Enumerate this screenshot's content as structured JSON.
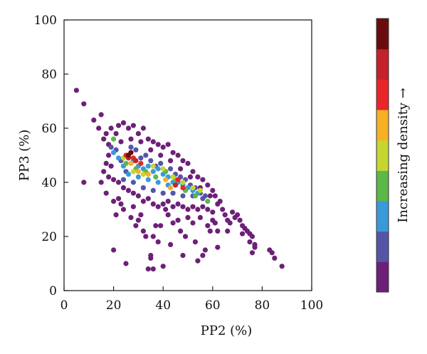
{
  "chart_data": {
    "type": "scatter",
    "xlabel": "PP2 (%)",
    "ylabel": "PP3 (%)",
    "xlim": [
      0,
      100
    ],
    "ylim": [
      0,
      100
    ],
    "xticks": [
      0,
      20,
      40,
      60,
      80,
      100
    ],
    "yticks": [
      0,
      20,
      40,
      60,
      80,
      100
    ],
    "grid": false,
    "colorbar": {
      "label": "Increasing density →",
      "colors": [
        "#6d2077",
        "#5555a8",
        "#3a9ad9",
        "#5cb848",
        "#c6d630",
        "#f6b026",
        "#e8262a",
        "#c4212b",
        "#6a0c0f"
      ]
    },
    "density_levels": 9,
    "points": [
      [
        5,
        74,
        0
      ],
      [
        8,
        69,
        0
      ],
      [
        8,
        40,
        0
      ],
      [
        12,
        63,
        0
      ],
      [
        15,
        65,
        0
      ],
      [
        14,
        60,
        0
      ],
      [
        17,
        58,
        0
      ],
      [
        15,
        40,
        0
      ],
      [
        17,
        36,
        0
      ],
      [
        16,
        44,
        0
      ],
      [
        18,
        50,
        0
      ],
      [
        19,
        46,
        0
      ],
      [
        20,
        33,
        0
      ],
      [
        21,
        28,
        0
      ],
      [
        22,
        34,
        0
      ],
      [
        23,
        32,
        0
      ],
      [
        24,
        30,
        0
      ],
      [
        20,
        15,
        0
      ],
      [
        25,
        10,
        0
      ],
      [
        27,
        27,
        0
      ],
      [
        28,
        31,
        0
      ],
      [
        29,
        24,
        0
      ],
      [
        30,
        26,
        0
      ],
      [
        31,
        28,
        0
      ],
      [
        32,
        22,
        0
      ],
      [
        33,
        20,
        0
      ],
      [
        34,
        8,
        0
      ],
      [
        35,
        12,
        0
      ],
      [
        35,
        13,
        0
      ],
      [
        36,
        8,
        0
      ],
      [
        36,
        20,
        0
      ],
      [
        37,
        24,
        0
      ],
      [
        38,
        18,
        0
      ],
      [
        40,
        9,
        0
      ],
      [
        39,
        24,
        0
      ],
      [
        42,
        28,
        0
      ],
      [
        43,
        17,
        0
      ],
      [
        41,
        30,
        0
      ],
      [
        44,
        25,
        0
      ],
      [
        46,
        26,
        0
      ],
      [
        47,
        22,
        0
      ],
      [
        48,
        13,
        0
      ],
      [
        49,
        20,
        0
      ],
      [
        50,
        27,
        0
      ],
      [
        52,
        25,
        0
      ],
      [
        53,
        18,
        0
      ],
      [
        54,
        11,
        0
      ],
      [
        55,
        27,
        0
      ],
      [
        56,
        13,
        0
      ],
      [
        57,
        15,
        0
      ],
      [
        58,
        24,
        0
      ],
      [
        59,
        22,
        0
      ],
      [
        60,
        26,
        0
      ],
      [
        61,
        25,
        0
      ],
      [
        62,
        22,
        0
      ],
      [
        62,
        16,
        0
      ],
      [
        64,
        30,
        0
      ],
      [
        65,
        28,
        0
      ],
      [
        66,
        26,
        0
      ],
      [
        66,
        22,
        0
      ],
      [
        67,
        25,
        0
      ],
      [
        68,
        29,
        0
      ],
      [
        69,
        27,
        0
      ],
      [
        70,
        28,
        0
      ],
      [
        71,
        26,
        0
      ],
      [
        72,
        24,
        0
      ],
      [
        72,
        21,
        0
      ],
      [
        73,
        23,
        0
      ],
      [
        74,
        22,
        0
      ],
      [
        75,
        21,
        0
      ],
      [
        75,
        18,
        0
      ],
      [
        76,
        20,
        0
      ],
      [
        77,
        17,
        0
      ],
      [
        77,
        16,
        0
      ],
      [
        76,
        14,
        0
      ],
      [
        83,
        15,
        0
      ],
      [
        84,
        14,
        0
      ],
      [
        85,
        12,
        0
      ],
      [
        88,
        9,
        0
      ],
      [
        16,
        56,
        0
      ],
      [
        18,
        54,
        0
      ],
      [
        19,
        60,
        0
      ],
      [
        21,
        58,
        0
      ],
      [
        22,
        61,
        0
      ],
      [
        24,
        62,
        0
      ],
      [
        26,
        60,
        0
      ],
      [
        28,
        61,
        0
      ],
      [
        30,
        58,
        0
      ],
      [
        32,
        60,
        0
      ],
      [
        34,
        56,
        0
      ],
      [
        36,
        55,
        0
      ],
      [
        38,
        54,
        0
      ],
      [
        40,
        53,
        0
      ],
      [
        42,
        54,
        0
      ],
      [
        44,
        51,
        0
      ],
      [
        46,
        50,
        0
      ],
      [
        48,
        48,
        0
      ],
      [
        50,
        47,
        0
      ],
      [
        52,
        44,
        0
      ],
      [
        54,
        42,
        0
      ],
      [
        56,
        41,
        0
      ],
      [
        58,
        39,
        0
      ],
      [
        60,
        37,
        0
      ],
      [
        61,
        35,
        0
      ],
      [
        63,
        33,
        0
      ],
      [
        17,
        47,
        0
      ],
      [
        18,
        42,
        0
      ],
      [
        20,
        41,
        0
      ],
      [
        22,
        40,
        0
      ],
      [
        24,
        38,
        0
      ],
      [
        26,
        37,
        0
      ],
      [
        28,
        36,
        0
      ],
      [
        30,
        35,
        0
      ],
      [
        32,
        33,
        0
      ],
      [
        34,
        34,
        0
      ],
      [
        36,
        32,
        0
      ],
      [
        38,
        31,
        0
      ],
      [
        40,
        32,
        0
      ],
      [
        42,
        33,
        0
      ],
      [
        44,
        31,
        0
      ],
      [
        46,
        32,
        0
      ],
      [
        48,
        31,
        0
      ],
      [
        50,
        30,
        0
      ],
      [
        52,
        31,
        0
      ],
      [
        54,
        30,
        0
      ],
      [
        56,
        31,
        0
      ],
      [
        58,
        30,
        0
      ],
      [
        60,
        29,
        0
      ],
      [
        23,
        55,
        0
      ],
      [
        27,
        56,
        0
      ],
      [
        31,
        55,
        0
      ],
      [
        35,
        52,
        0
      ],
      [
        39,
        50,
        0
      ],
      [
        43,
        48,
        0
      ],
      [
        47,
        45,
        0
      ],
      [
        51,
        42,
        0
      ],
      [
        55,
        38,
        0
      ],
      [
        59,
        35,
        0
      ],
      [
        62,
        32,
        0
      ],
      [
        19,
        53,
        1
      ],
      [
        21,
        52,
        1
      ],
      [
        23,
        48,
        1
      ],
      [
        25,
        44,
        1
      ],
      [
        27,
        53,
        1
      ],
      [
        29,
        52,
        1
      ],
      [
        31,
        49,
        1
      ],
      [
        33,
        50,
        1
      ],
      [
        35,
        48,
        1
      ],
      [
        37,
        46,
        1
      ],
      [
        39,
        47,
        1
      ],
      [
        41,
        44,
        1
      ],
      [
        43,
        45,
        1
      ],
      [
        45,
        43,
        1
      ],
      [
        47,
        42,
        1
      ],
      [
        49,
        41,
        1
      ],
      [
        51,
        39,
        1
      ],
      [
        53,
        38,
        1
      ],
      [
        55,
        36,
        1
      ],
      [
        57,
        35,
        1
      ],
      [
        24,
        41,
        1
      ],
      [
        28,
        40,
        1
      ],
      [
        32,
        38,
        1
      ],
      [
        36,
        37,
        1
      ],
      [
        40,
        36,
        1
      ],
      [
        44,
        36,
        1
      ],
      [
        48,
        35,
        1
      ],
      [
        52,
        35,
        1
      ],
      [
        56,
        34,
        1
      ],
      [
        20,
        51,
        2
      ],
      [
        22,
        49,
        2
      ],
      [
        24,
        46,
        2
      ],
      [
        26,
        50,
        2
      ],
      [
        28,
        48,
        2
      ],
      [
        30,
        46,
        2
      ],
      [
        32,
        45,
        2
      ],
      [
        34,
        46,
        2
      ],
      [
        36,
        44,
        2
      ],
      [
        38,
        45,
        2
      ],
      [
        40,
        43,
        2
      ],
      [
        42,
        42,
        2
      ],
      [
        44,
        40,
        2
      ],
      [
        46,
        40,
        2
      ],
      [
        48,
        39,
        2
      ],
      [
        50,
        38,
        2
      ],
      [
        52,
        37,
        2
      ],
      [
        54,
        36,
        2
      ],
      [
        26,
        43,
        2
      ],
      [
        30,
        42,
        2
      ],
      [
        34,
        41,
        2
      ],
      [
        38,
        40,
        2
      ],
      [
        42,
        39,
        2
      ],
      [
        20,
        56,
        3
      ],
      [
        25,
        47,
        3
      ],
      [
        29,
        45,
        3
      ],
      [
        33,
        44,
        3
      ],
      [
        37,
        42,
        3
      ],
      [
        41,
        44,
        3
      ],
      [
        45,
        41,
        3
      ],
      [
        49,
        37,
        3
      ],
      [
        53,
        35,
        3
      ],
      [
        58,
        33,
        3
      ],
      [
        24,
        49,
        4
      ],
      [
        28,
        44,
        4
      ],
      [
        32,
        43,
        4
      ],
      [
        36,
        46,
        4
      ],
      [
        40,
        45,
        4
      ],
      [
        44,
        42,
        4
      ],
      [
        48,
        40,
        4
      ],
      [
        52,
        38,
        4
      ],
      [
        55,
        37,
        4
      ],
      [
        27,
        47,
        5
      ],
      [
        30,
        44,
        5
      ],
      [
        34,
        43,
        5
      ],
      [
        41,
        41,
        5
      ],
      [
        45,
        39,
        5
      ],
      [
        43,
        38,
        5
      ],
      [
        25,
        50,
        6
      ],
      [
        28,
        49,
        6
      ],
      [
        31,
        47,
        6
      ],
      [
        46,
        41,
        6
      ],
      [
        48,
        38,
        6
      ],
      [
        26,
        49,
        7
      ],
      [
        29,
        48,
        7
      ],
      [
        45,
        39,
        7
      ],
      [
        27,
        51,
        8
      ],
      [
        26,
        50,
        8
      ]
    ]
  }
}
